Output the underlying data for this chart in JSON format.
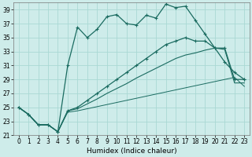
{
  "xlabel": "Humidex (Indice chaleur)",
  "bg_color": "#ceecea",
  "grid_color": "#aad8d4",
  "line_color": "#1a6b60",
  "xlim": [
    -0.5,
    23.5
  ],
  "ylim": [
    21,
    40
  ],
  "yticks": [
    21,
    23,
    25,
    27,
    29,
    31,
    33,
    35,
    37,
    39
  ],
  "xticks": [
    0,
    1,
    2,
    3,
    4,
    5,
    6,
    7,
    8,
    9,
    10,
    11,
    12,
    13,
    14,
    15,
    16,
    17,
    18,
    19,
    20,
    21,
    22,
    23
  ],
  "curve1_x": [
    0,
    1,
    2,
    3,
    4,
    5,
    6,
    7,
    8,
    9,
    10,
    11,
    12,
    13,
    14,
    15,
    16,
    17,
    18,
    19,
    20,
    21,
    22,
    23
  ],
  "curve1_y": [
    25.0,
    24.0,
    22.5,
    22.5,
    21.5,
    31.0,
    36.5,
    35.0,
    36.2,
    38.0,
    38.3,
    37.0,
    36.8,
    38.2,
    37.8,
    39.8,
    39.3,
    39.5,
    37.5,
    35.5,
    33.5,
    31.5,
    30.0,
    29.0
  ],
  "curve2_x": [
    0,
    1,
    2,
    3,
    4,
    5,
    6,
    7,
    8,
    9,
    10,
    11,
    12,
    13,
    14,
    15,
    16,
    17,
    18,
    19,
    20,
    21,
    22,
    23
  ],
  "curve2_y": [
    25.0,
    24.0,
    22.5,
    22.5,
    21.5,
    24.5,
    25.0,
    26.0,
    27.0,
    28.0,
    29.0,
    30.0,
    31.0,
    32.0,
    33.0,
    34.0,
    34.5,
    35.0,
    34.5,
    34.5,
    33.5,
    33.5,
    29.0,
    29.0
  ],
  "curve3_x": [
    0,
    1,
    2,
    3,
    4,
    5,
    6,
    7,
    8,
    9,
    10,
    11,
    12,
    13,
    14,
    15,
    16,
    17,
    18,
    19,
    20,
    21,
    22,
    23
  ],
  "curve3_y": [
    25.0,
    24.0,
    22.5,
    22.5,
    21.5,
    24.5,
    24.8,
    25.5,
    26.2,
    27.0,
    27.7,
    28.4,
    29.2,
    29.9,
    30.6,
    31.3,
    32.0,
    32.5,
    32.8,
    33.2,
    33.5,
    33.3,
    28.5,
    28.5
  ],
  "curve4_x": [
    0,
    1,
    2,
    3,
    4,
    5,
    6,
    7,
    8,
    9,
    10,
    11,
    12,
    13,
    14,
    15,
    16,
    17,
    18,
    19,
    20,
    21,
    22,
    23
  ],
  "curve4_y": [
    25.0,
    24.0,
    22.5,
    22.5,
    21.5,
    24.3,
    24.5,
    24.8,
    25.1,
    25.4,
    25.7,
    26.0,
    26.3,
    26.6,
    26.9,
    27.2,
    27.5,
    27.8,
    28.1,
    28.4,
    28.7,
    29.0,
    29.3,
    28.0
  ]
}
